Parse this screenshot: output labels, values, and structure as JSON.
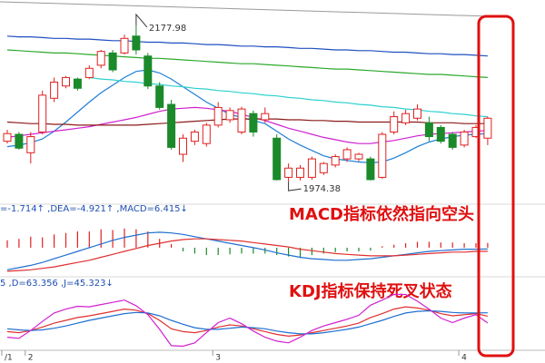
{
  "chart_data": [
    {
      "type": "candlestick",
      "categories": [
        "/1",
        null,
        "2",
        null,
        null,
        null,
        null,
        null,
        null,
        null,
        null,
        null,
        null,
        null,
        null,
        null,
        null,
        null,
        "3",
        null,
        null,
        null,
        null,
        null,
        null,
        null,
        null,
        null,
        null,
        null,
        null,
        null,
        null,
        null,
        null,
        null,
        null,
        null,
        null,
        "4",
        null,
        null
      ],
      "open": [
        2027,
        2036,
        2012,
        2039,
        2083,
        2099,
        2108,
        2110,
        2126,
        2142,
        2142,
        2164,
        2138,
        2099,
        2075,
        2010,
        2027,
        2024,
        2048,
        2055,
        2039,
        2063,
        2055,
        2031,
        1980,
        1980,
        1980,
        1986,
        1996,
        2004,
        2004,
        2004,
        1980,
        2039,
        2051,
        2057,
        2051,
        2045,
        2036,
        2022,
        2033,
        2031
      ],
      "high": [
        2042,
        2039,
        2039,
        2093,
        2110,
        2112,
        2110,
        2126,
        2146,
        2146,
        2166,
        2177.98,
        2142,
        2104,
        2081,
        2036,
        2042,
        2051,
        2078,
        2071,
        2072,
        2067,
        2071,
        2036,
        1998,
        1996,
        2007,
        2000,
        2010,
        2019,
        2012,
        2007,
        2039,
        2066,
        2068,
        2075,
        2059,
        2048,
        2039,
        2042,
        2048,
        2059
      ],
      "low": [
        2024,
        2016,
        1998,
        2036,
        2078,
        2096,
        2093,
        2108,
        2122,
        2117,
        2140,
        2140,
        2095,
        2068,
        2016,
        2000,
        2022,
        2020,
        2045,
        2051,
        2036,
        2033,
        2051,
        1976,
        1974.38,
        1976,
        1977,
        1983,
        1993,
        2000,
        2001,
        1976,
        1978,
        2036,
        2048,
        2054,
        2027,
        2024,
        2016,
        2019,
        2031,
        2022
      ],
      "close": [
        2037,
        2018,
        2033,
        2087,
        2104,
        2110,
        2096,
        2122,
        2144,
        2120,
        2161,
        2146,
        2099,
        2071,
        2019,
        2031,
        2039,
        2048,
        2071,
        2067,
        2069,
        2039,
        2063,
        1977,
        1992,
        1992,
        2004,
        1998,
        2007,
        2016,
        2010,
        1977,
        2036,
        2059,
        2063,
        2069,
        2033,
        2027,
        2019,
        2039,
        2045,
        2057
      ],
      "up_color": "#e02020",
      "down_color": "#1a8a2a",
      "ylim": [
        1945,
        2211
      ],
      "high_label_index": 11,
      "low_label_index": 24,
      "lines": [
        {
          "color": "#1e7fd8",
          "values": [
            2020,
            2022,
            2025,
            2030,
            2040,
            2052,
            2065,
            2078,
            2090,
            2100,
            2110,
            2118,
            2120,
            2116,
            2108,
            2098,
            2088,
            2078,
            2070,
            2062,
            2058,
            2054,
            2050,
            2040,
            2030,
            2022,
            2015,
            2008,
            2004,
            2002,
            2000,
            1999,
            2000,
            2005,
            2012,
            2020,
            2026,
            2030,
            2033,
            2035,
            2036,
            2037
          ]
        },
        {
          "color": "#d020d0",
          "values": [
            2032,
            2034,
            2036,
            2038,
            2040,
            2042,
            2044,
            2046,
            2049,
            2052,
            2055,
            2058,
            2062,
            2066,
            2069,
            2070,
            2071,
            2070,
            2068,
            2066,
            2062,
            2058,
            2054,
            2049,
            2044,
            2040,
            2036,
            2032,
            2029,
            2026,
            2024,
            2024,
            2026,
            2028,
            2031,
            2034,
            2036,
            2037,
            2038,
            2039,
            2040,
            2041
          ]
        },
        {
          "color": "#8b1a1a",
          "values": [
            2052,
            2051,
            2050,
            2050,
            2049,
            2049,
            2048,
            2048,
            2048,
            2048,
            2048,
            2048,
            2049,
            2050,
            2051,
            2052,
            2053,
            2054,
            2055,
            2056,
            2056,
            2056,
            2056,
            2056,
            2055,
            2055,
            2054,
            2054,
            2053,
            2053,
            2052,
            2052,
            2052,
            2052,
            2052,
            2052,
            2051,
            2051,
            2051,
            2050,
            2050,
            2050
          ]
        },
        {
          "color": "#2fd0d0",
          "values": [
            null,
            null,
            null,
            null,
            null,
            null,
            null,
            2110,
            2108,
            2107,
            2105,
            2104,
            2102,
            2101,
            2099,
            2098,
            2096,
            2095,
            2093,
            2092,
            2090,
            2089,
            2087,
            2086,
            2084,
            2083,
            2081,
            2080,
            2078,
            2077,
            2075,
            2074,
            2072,
            2071,
            2069,
            2068,
            2066,
            2065,
            2063,
            2062,
            2060,
            2059
          ]
        },
        {
          "color": "#2ca82c",
          "values": [
            2146,
            2145,
            2144,
            2143,
            2142,
            2142,
            2141,
            2140,
            2139,
            2138,
            2137,
            2136,
            2135,
            2135,
            2134,
            2133,
            2132,
            2131,
            2130,
            2129,
            2128,
            2128,
            2127,
            2126,
            2125,
            2124,
            2123,
            2122,
            2121,
            2121,
            2120,
            2119,
            2118,
            2117,
            2116,
            2115,
            2114,
            2114,
            2113,
            2112,
            2111,
            2110
          ]
        },
        {
          "color": "#1f4fbf",
          "values": [
            2164,
            2163,
            2163,
            2162,
            2161,
            2161,
            2160,
            2160,
            2159,
            2158,
            2158,
            2157,
            2156,
            2156,
            2155,
            2155,
            2154,
            2153,
            2153,
            2152,
            2151,
            2151,
            2150,
            2150,
            2149,
            2148,
            2148,
            2147,
            2146,
            2146,
            2145,
            2145,
            2144,
            2143,
            2143,
            2142,
            2141,
            2141,
            2140,
            2140,
            2139,
            2138
          ]
        }
      ]
    },
    {
      "type": "macd",
      "header": "=-1.714↑ ,DEA=-4.921↑ ,MACD=6.415↓",
      "note": "MACD指标依然指向空头",
      "ylim": [
        -37,
        43
      ],
      "up_color": "#e02020",
      "down_color": "#1a8a2a",
      "values": [
        10,
        12,
        15,
        14,
        18,
        20,
        22,
        22,
        25,
        24,
        26,
        25,
        22,
        12,
        5,
        -5,
        -8,
        -10,
        -10,
        -9,
        -8,
        -8,
        -8,
        -10,
        -12,
        -14,
        -10,
        -8,
        -6,
        -5,
        -5,
        -4,
        2,
        4,
        6,
        8,
        8,
        7,
        7,
        6,
        6,
        6.415
      ],
      "lines": [
        {
          "color": "#1e6fd0",
          "values": [
            -30,
            -27,
            -24,
            -20,
            -15,
            -10,
            -5,
            0,
            5,
            10,
            14,
            17,
            20,
            21,
            20,
            18,
            15,
            12,
            9,
            6,
            3,
            0,
            -3,
            -7,
            -10,
            -13,
            -15,
            -16,
            -17,
            -17,
            -16,
            -15,
            -13,
            -11,
            -9,
            -7,
            -5,
            -4,
            -3,
            -2,
            -2,
            -1.714
          ]
        },
        {
          "color": "#e03030",
          "values": [
            -32,
            -31,
            -30,
            -28,
            -26,
            -23,
            -20,
            -17,
            -13,
            -9,
            -5,
            -1,
            3,
            6,
            9,
            11,
            12,
            12,
            11,
            10,
            9,
            7,
            5,
            3,
            1,
            -2,
            -4,
            -6,
            -8,
            -9,
            -10,
            -11,
            -11,
            -11,
            -10,
            -9,
            -8,
            -7,
            -6,
            -6,
            -5,
            -4.921
          ]
        }
      ]
    },
    {
      "type": "kdj",
      "header": "5 ,D=63.356 ,J=45.323↓",
      "note": "KDJ指标保持死叉状态",
      "ylim": [
        0,
        100
      ],
      "lines": [
        {
          "color": "#e03030",
          "values": [
            30,
            28,
            32,
            38,
            45,
            50,
            55,
            58,
            62,
            66,
            70,
            68,
            62,
            50,
            35,
            30,
            28,
            32,
            38,
            42,
            40,
            35,
            30,
            25,
            22,
            24,
            28,
            32,
            36,
            40,
            45,
            55,
            62,
            70,
            74,
            72,
            68,
            62,
            58,
            60,
            62,
            57.345
          ]
        },
        {
          "color": "#1e6fd0",
          "values": [
            35,
            33,
            32,
            33,
            36,
            40,
            45,
            50,
            54,
            58,
            62,
            64,
            63,
            58,
            50,
            43,
            37,
            34,
            34,
            36,
            38,
            37,
            35,
            31,
            28,
            26,
            26,
            28,
            31,
            34,
            38,
            44,
            50,
            57,
            63,
            66,
            67,
            66,
            64,
            63,
            63,
            63.356
          ]
        },
        {
          "color": "#d020d0",
          "values": [
            20,
            18,
            32,
            48,
            63,
            70,
            75,
            74,
            78,
            82,
            86,
            76,
            60,
            34,
            5,
            4,
            10,
            28,
            46,
            54,
            44,
            31,
            20,
            13,
            10,
            20,
            32,
            40,
            46,
            52,
            59,
            77,
            86,
            96,
            96,
            84,
            70,
            54,
            46,
            54,
            60,
            45.323
          ]
        }
      ]
    }
  ]
}
